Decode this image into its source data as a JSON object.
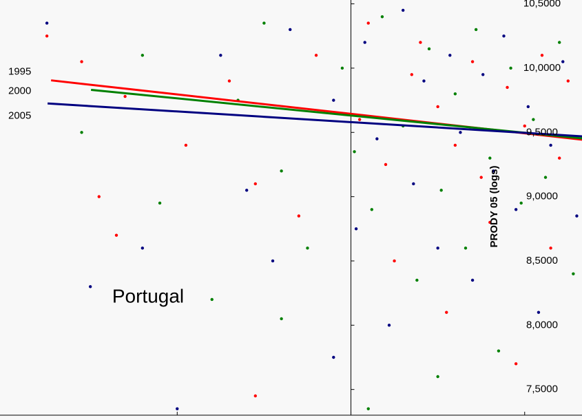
{
  "chart_data": {
    "type": "scatter",
    "annotation": "Portugal",
    "y_label": "PRODY 05 (logs)",
    "xlim": [
      -2.02,
      1.33
    ],
    "ylim": [
      7.3,
      10.53
    ],
    "xticks": [
      -1,
      0,
      1
    ],
    "yticks": [
      {
        "value": 7.5,
        "label": "7,5000"
      },
      {
        "value": 8,
        "label": "8,0000"
      },
      {
        "value": 8.5,
        "label": "8,5000"
      },
      {
        "value": 9,
        "label": "9,0000"
      },
      {
        "value": 9.5,
        "label": "9,5000"
      },
      {
        "value": 10,
        "label": "10,0000"
      },
      {
        "value": 10.5,
        "label": "10,5000"
      }
    ],
    "series": [
      {
        "name": "1995",
        "color": "#ff0000",
        "x": [
          -1.75,
          -1.55,
          -1.3,
          -1.45,
          -1.35,
          -0.95,
          -0.7,
          -0.55,
          -0.3,
          -0.2,
          0.05,
          0.1,
          0.2,
          0.25,
          0.35,
          0.4,
          0.5,
          0.55,
          0.6,
          0.7,
          0.75,
          0.8,
          0.9,
          0.95,
          1.0,
          1.1,
          1.15,
          1.2,
          1.25,
          -0.55
        ],
        "y": [
          10.25,
          10.05,
          9.78,
          9.0,
          8.7,
          9.4,
          9.9,
          9.1,
          8.85,
          10.1,
          9.6,
          10.35,
          9.25,
          8.5,
          9.95,
          10.2,
          9.7,
          8.1,
          9.4,
          10.05,
          9.15,
          8.8,
          9.85,
          7.7,
          9.55,
          10.1,
          8.6,
          9.3,
          9.9,
          7.45
        ],
        "fit": {
          "x": [
            -1.726,
            1.333
          ],
          "y": [
            9.905,
            9.443
          ]
        }
      },
      {
        "name": "2000",
        "color": "#008000",
        "x": [
          -1.2,
          -1.1,
          -0.8,
          -0.65,
          -0.5,
          -0.4,
          -0.25,
          -0.05,
          0.02,
          0.12,
          0.18,
          0.3,
          0.38,
          0.45,
          0.52,
          0.6,
          0.66,
          0.72,
          0.8,
          0.85,
          0.92,
          0.98,
          1.05,
          1.12,
          1.2,
          1.28,
          -0.4,
          0.1,
          0.5,
          -1.55
        ],
        "y": [
          10.1,
          8.95,
          8.2,
          9.75,
          10.35,
          9.2,
          8.6,
          10.0,
          9.35,
          8.9,
          10.4,
          9.55,
          8.35,
          10.15,
          9.05,
          9.8,
          8.6,
          10.3,
          9.3,
          7.8,
          10.0,
          8.95,
          9.6,
          9.15,
          10.2,
          8.4,
          8.05,
          7.35,
          7.6,
          9.5
        ],
        "fit": {
          "x": [
            -1.496,
            1.333
          ],
          "y": [
            9.831,
            9.453
          ]
        }
      },
      {
        "name": "2005",
        "color": "#000080",
        "x": [
          -1.75,
          -1.5,
          -1.2,
          -1.0,
          -0.75,
          -0.6,
          -0.45,
          -0.35,
          -0.1,
          0.03,
          0.08,
          0.15,
          0.22,
          0.3,
          0.36,
          0.42,
          0.5,
          0.57,
          0.63,
          0.7,
          0.76,
          0.82,
          0.88,
          0.95,
          1.02,
          1.08,
          1.15,
          1.22,
          1.3,
          -0.1
        ],
        "y": [
          10.35,
          8.3,
          8.6,
          7.35,
          10.1,
          9.05,
          8.5,
          10.3,
          9.75,
          8.75,
          10.2,
          9.45,
          8.0,
          10.45,
          9.1,
          9.9,
          8.6,
          10.1,
          9.5,
          8.35,
          9.95,
          9.2,
          10.25,
          8.9,
          9.7,
          8.1,
          9.4,
          10.05,
          8.85,
          7.75
        ],
        "fit": {
          "x": [
            -1.746,
            1.333
          ],
          "y": [
            9.725,
            9.469
          ]
        }
      }
    ]
  }
}
